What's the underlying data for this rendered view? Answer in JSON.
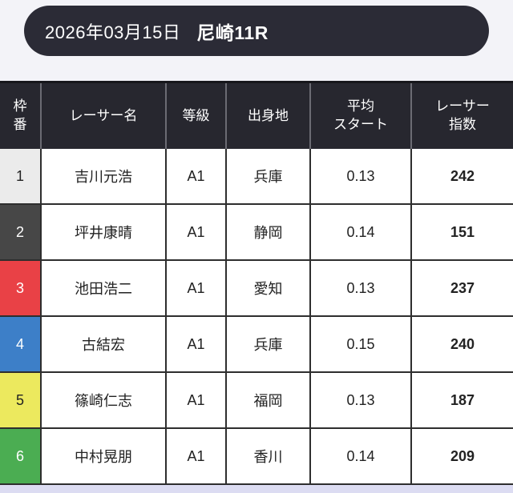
{
  "page": {
    "background_color": "#f3f3f8",
    "bottom_strip_color": "#dcdcf2"
  },
  "header": {
    "date": "2026年03月15日",
    "race": "尼崎11R",
    "background_color": "#2b2b36",
    "text_color": "#ffffff"
  },
  "table": {
    "header_background": "#27272f",
    "header_text_color": "#ffffff",
    "border_color": "#2e2e2e",
    "columns": [
      {
        "key": "waku",
        "label": "枠\n番"
      },
      {
        "key": "name",
        "label": "レーサー名"
      },
      {
        "key": "grade",
        "label": "等級"
      },
      {
        "key": "origin",
        "label": "出身地"
      },
      {
        "key": "avg_start",
        "label": "平均\nスタート"
      },
      {
        "key": "index",
        "label": "レーサー\n指数"
      }
    ],
    "rows": [
      {
        "waku": "1",
        "waku_bg": "#ebebeb",
        "waku_color": "#222222",
        "name": "吉川元浩",
        "grade": "A1",
        "origin": "兵庫",
        "avg_start": "0.13",
        "index": "242"
      },
      {
        "waku": "2",
        "waku_bg": "#474747",
        "waku_color": "#ffffff",
        "name": "坪井康晴",
        "grade": "A1",
        "origin": "静岡",
        "avg_start": "0.14",
        "index": "151"
      },
      {
        "waku": "3",
        "waku_bg": "#e94146",
        "waku_color": "#ffffff",
        "name": "池田浩二",
        "grade": "A1",
        "origin": "愛知",
        "avg_start": "0.13",
        "index": "237"
      },
      {
        "waku": "4",
        "waku_bg": "#3d7fc8",
        "waku_color": "#ffffff",
        "name": "古結宏",
        "grade": "A1",
        "origin": "兵庫",
        "avg_start": "0.15",
        "index": "240"
      },
      {
        "waku": "5",
        "waku_bg": "#ece95e",
        "waku_color": "#222222",
        "name": "篠崎仁志",
        "grade": "A1",
        "origin": "福岡",
        "avg_start": "0.13",
        "index": "187"
      },
      {
        "waku": "6",
        "waku_bg": "#4bad52",
        "waku_color": "#ffffff",
        "name": "中村晃朋",
        "grade": "A1",
        "origin": "香川",
        "avg_start": "0.14",
        "index": "209"
      }
    ]
  }
}
